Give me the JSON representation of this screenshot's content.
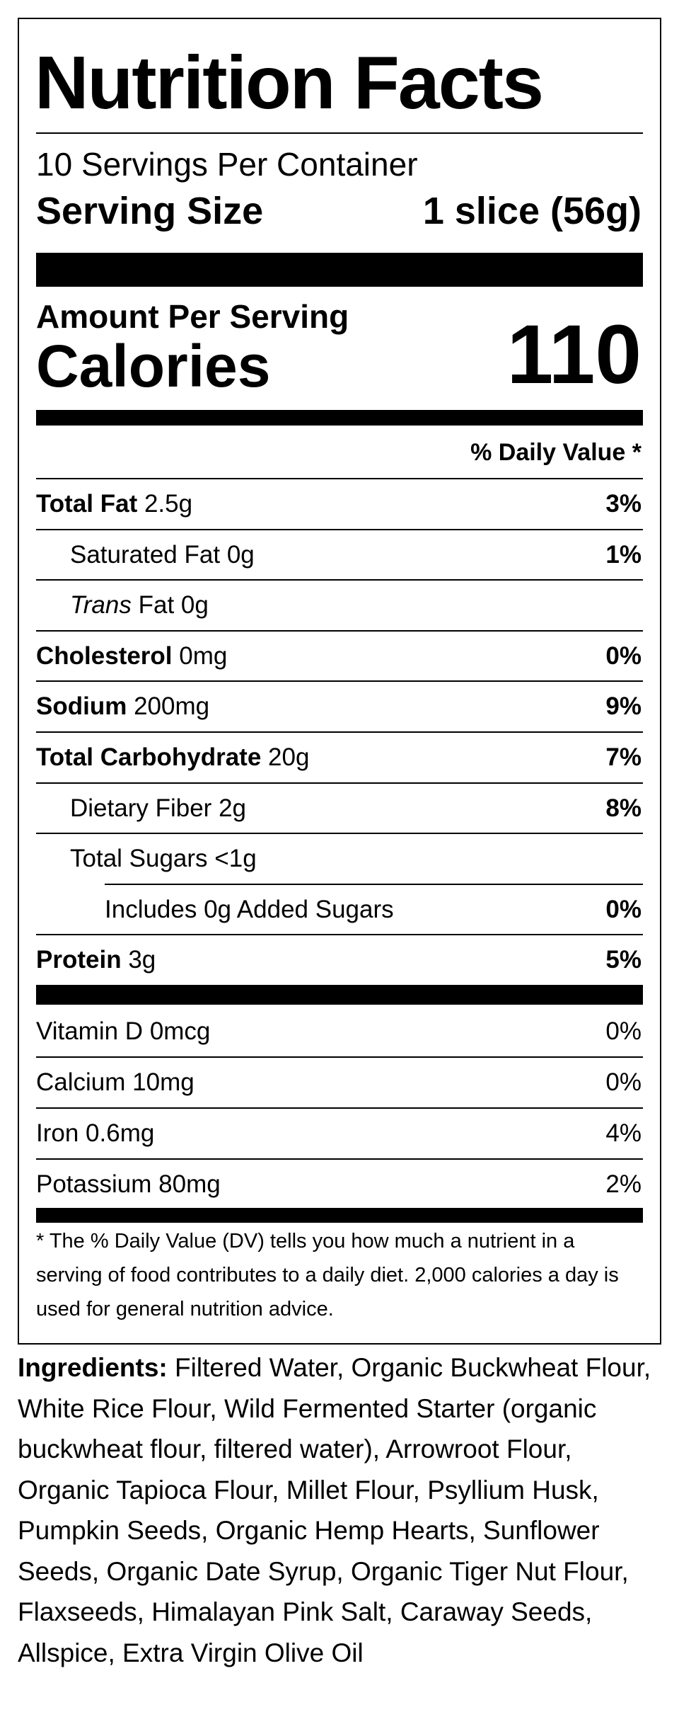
{
  "header": {
    "title": "Nutrition Facts",
    "servings": "10 Servings Per Container",
    "serving_size_label": "Serving Size",
    "serving_size_value": "1 slice (56g)"
  },
  "calories": {
    "heading": "Amount Per Serving",
    "label": "Calories",
    "value": "110"
  },
  "daily_value_header": "% Daily Value *",
  "nutrients": [
    {
      "name": "Total Fat",
      "amount": "2.5g",
      "dv": "3%",
      "bold": true,
      "indent": 0
    },
    {
      "name": "Saturated Fat",
      "amount": "0g",
      "dv": "1%",
      "bold": false,
      "indent": 1
    },
    {
      "name_italic": "Trans",
      "name": "Fat",
      "amount": "0g",
      "bold": false,
      "indent": 1
    },
    {
      "name": "Cholesterol",
      "amount": "0mg",
      "dv": "0%",
      "bold": true,
      "indent": 0
    },
    {
      "name": "Sodium",
      "amount": "200mg",
      "dv": "9%",
      "bold": true,
      "indent": 0
    },
    {
      "name": "Total Carbohydrate",
      "amount": "20g",
      "dv": "7%",
      "bold": true,
      "indent": 0
    },
    {
      "name": "Dietary Fiber",
      "amount": "2g",
      "dv": "8%",
      "bold": false,
      "indent": 1
    },
    {
      "name": "Total Sugars",
      "amount": "<1g",
      "bold": false,
      "indent": 1
    },
    {
      "name": "Includes 0g Added Sugars",
      "dv": "0%",
      "bold": false,
      "indent": 2
    },
    {
      "name": "Protein",
      "amount": "3g",
      "dv": "5%",
      "bold": true,
      "indent": 0
    }
  ],
  "vitamins": [
    {
      "name": "Vitamin D",
      "amount": "0mcg",
      "dv": "0%"
    },
    {
      "name": "Calcium",
      "amount": "10mg",
      "dv": "0%"
    },
    {
      "name": "Iron",
      "amount": "0.6mg",
      "dv": "4%"
    },
    {
      "name": "Potassium",
      "amount": "80mg",
      "dv": "2%"
    }
  ],
  "footnote": "* The % Daily Value (DV) tells you how much a nutrient in a serving of food contributes to a daily diet. 2,000 calories a day is used for general nutrition advice.",
  "ingredients": {
    "label": "Ingredients:",
    "text": "Filtered Water, Organic Buckwheat Flour, White Rice Flour, Wild Fermented Starter (organic buckwheat flour, filtered water), Arrowroot Flour, Organic Tapioca Flour, Millet Flour, Psyllium Husk, Pumpkin Seeds, Organic Hemp Hearts, Sunflower Seeds, Organic Date Syrup, Organic Tiger Nut Flour, Flaxseeds, Himalayan Pink Salt, Caraway Seeds, Allspice, Extra Virgin Olive Oil"
  }
}
